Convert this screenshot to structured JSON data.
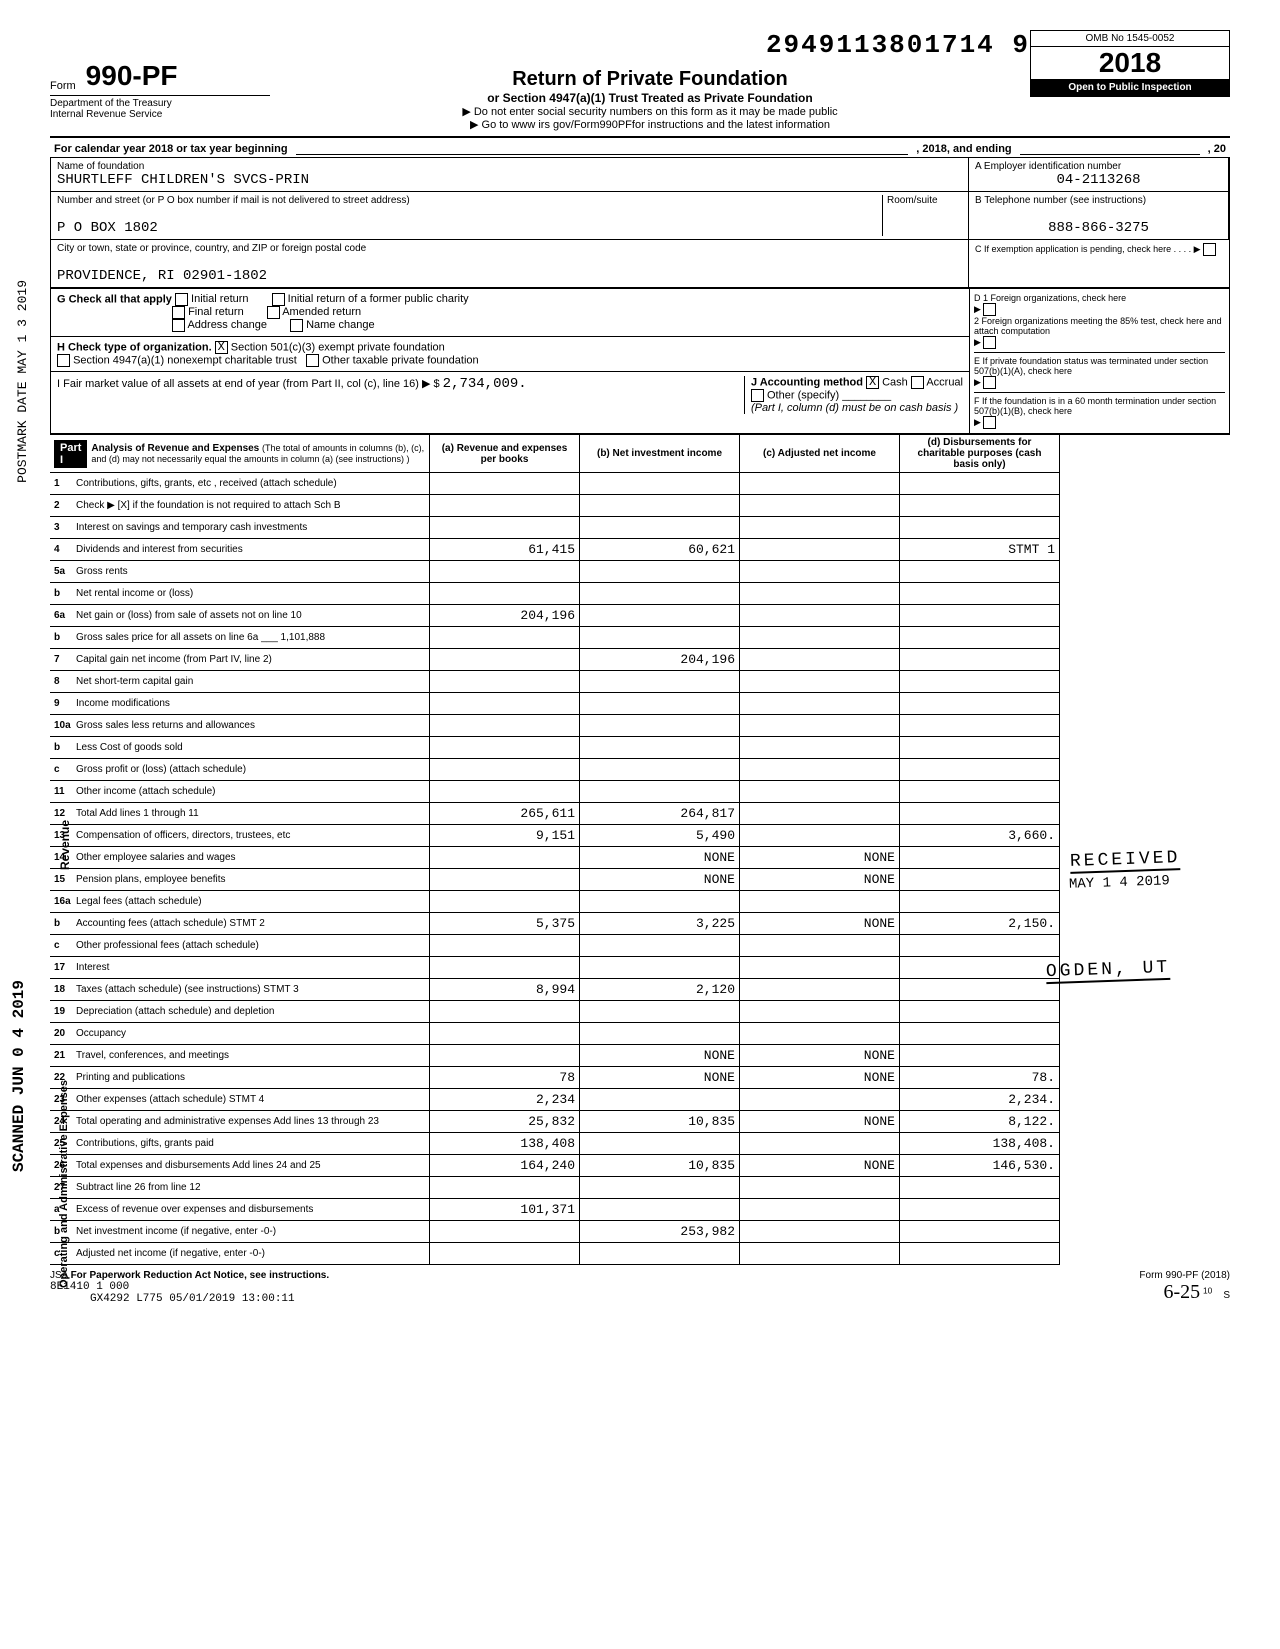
{
  "doc_id": "2949113801714 9",
  "form_prefix": "Form",
  "form_number": "990-PF",
  "dept1": "Department of the Treasury",
  "dept2": "Internal Revenue Service",
  "title": "Return of Private Foundation",
  "subtitle": "or Section 4947(a)(1) Trust Treated as Private Foundation",
  "warn": "▶ Do not enter social security numbers on this form as it may be made public",
  "goto": "▶ Go to www irs gov/Form990PFfor instructions and the latest information",
  "omb": "OMB No 1545-0052",
  "year_prefix": "20",
  "year_suffix": "18",
  "open_to": "Open to Public Inspection",
  "cal_year": "For calendar year 2018 or tax year beginning",
  "cal_mid": ", 2018, and ending",
  "cal_end": ", 20",
  "labels": {
    "name": "Name of foundation",
    "ein": "A  Employer identification number",
    "addr": "Number and street (or P O  box number if mail is not delivered to street address)",
    "room": "Room/suite",
    "tel": "B  Telephone number (see instructions)",
    "city": "City or town, state or province, country, and ZIP or foreign postal code",
    "c": "C  If exemption application is pending, check here",
    "g": "G  Check all that apply",
    "h": "H  Check type of organization.",
    "i": "I   Fair market value of all assets at end of year (from Part II, col  (c), line 16) ▶ $",
    "j": "J Accounting method",
    "part1": "Part I",
    "part1_title": "Analysis of Revenue and Expenses",
    "part1_note": "(The total of amounts in columns (b), (c), and (d) may not necessarily equal the amounts in column (a) (see instructions) )",
    "col_a": "(a) Revenue and expenses per books",
    "col_b": "(b) Net investment income",
    "col_c": "(c) Adjusted net income",
    "col_d": "(d) Disbursements for charitable purposes (cash basis only)"
  },
  "foundation_name": "SHURTLEFF CHILDREN'S SVCS-PRIN",
  "ein": "04-2113268",
  "po_box": "P O BOX 1802",
  "phone": "888-866-3275",
  "city_state": "PROVIDENCE, RI  02901-1802",
  "g_opts": [
    "Initial return",
    "Final return",
    "Address change",
    "Initial return of a former public charity",
    "Amended return",
    "Name change"
  ],
  "h_opts": [
    "Section 501(c)(3) exempt private foundation",
    "Section 4947(a)(1) nonexempt charitable trust",
    "Other taxable private foundation"
  ],
  "h_checked": "X",
  "j_opts": [
    "Cash",
    "Accrual",
    "Other (specify)"
  ],
  "j_checked": "X",
  "fmv": "2,734,009.",
  "part1_note2": "(Part I, column (d) must be on cash basis )",
  "d_opts": {
    "d1": "D  1  Foreign organizations, check here",
    "d2": "2  Foreign organizations meeting the 85% test, check here and attach computation",
    "e": "E  If private foundation status was terminated under section 507(b)(1)(A), check here",
    "f": "F  If the foundation is in a 60 month termination under section 507(b)(1)(B), check here"
  },
  "side_postmark": "POSTMARK DATE MAY 1 3 2019",
  "side_envelope": "ENVELOPE",
  "side_scanned": "SCANNED JUN 0 4 2019",
  "stamp_received": "RECEIVED",
  "stamp_date": "MAY 1 4 2019",
  "stamp_ogden": "OGDEN, UT",
  "vert_revenue": "Revenue",
  "vert_oae": "Operating and Administrative Expenses",
  "rows": [
    {
      "n": "1",
      "d": "Contributions, gifts, grants, etc , received (attach schedule)",
      "a": "",
      "b": "",
      "c": "",
      "dd": ""
    },
    {
      "n": "2",
      "d": "Check ▶ [X]  if the foundation is not required to attach Sch B",
      "a": "",
      "b": "",
      "c": "",
      "dd": ""
    },
    {
      "n": "3",
      "d": "Interest on savings and temporary cash investments",
      "a": "",
      "b": "",
      "c": "",
      "dd": ""
    },
    {
      "n": "4",
      "d": "Dividends and interest from securities",
      "a": "61,415",
      "b": "60,621",
      "c": "",
      "dd": "STMT 1"
    },
    {
      "n": "5a",
      "d": "Gross rents",
      "a": "",
      "b": "",
      "c": "",
      "dd": ""
    },
    {
      "n": "b",
      "d": "Net rental income or (loss)",
      "a": "",
      "b": "",
      "c": "",
      "dd": ""
    },
    {
      "n": "6a",
      "d": "Net gain or (loss) from sale of assets not on line 10",
      "a": "204,196",
      "b": "",
      "c": "",
      "dd": ""
    },
    {
      "n": "b",
      "d": "Gross sales price for all assets on line 6a ___ 1,101,888",
      "a": "",
      "b": "",
      "c": "",
      "dd": ""
    },
    {
      "n": "7",
      "d": "Capital gain net income (from Part IV, line 2)",
      "a": "",
      "b": "204,196",
      "c": "",
      "dd": ""
    },
    {
      "n": "8",
      "d": "Net short-term capital gain",
      "a": "",
      "b": "",
      "c": "",
      "dd": ""
    },
    {
      "n": "9",
      "d": "Income modifications",
      "a": "",
      "b": "",
      "c": "",
      "dd": ""
    },
    {
      "n": "10a",
      "d": "Gross sales less returns and allowances",
      "a": "",
      "b": "",
      "c": "",
      "dd": ""
    },
    {
      "n": "b",
      "d": "Less  Cost of goods sold",
      "a": "",
      "b": "",
      "c": "",
      "dd": ""
    },
    {
      "n": "c",
      "d": "Gross profit or (loss) (attach schedule)",
      "a": "",
      "b": "",
      "c": "",
      "dd": ""
    },
    {
      "n": "11",
      "d": "Other income (attach schedule)",
      "a": "",
      "b": "",
      "c": "",
      "dd": ""
    },
    {
      "n": "12",
      "d": "Total  Add lines 1 through 11",
      "a": "265,611",
      "b": "264,817",
      "c": "",
      "dd": ""
    },
    {
      "n": "13",
      "d": "Compensation of officers, directors, trustees, etc",
      "a": "9,151",
      "b": "5,490",
      "c": "",
      "dd": "3,660."
    },
    {
      "n": "14",
      "d": "Other employee salaries and wages",
      "a": "",
      "b": "NONE",
      "c": "NONE",
      "dd": ""
    },
    {
      "n": "15",
      "d": "Pension plans, employee benefits",
      "a": "",
      "b": "NONE",
      "c": "NONE",
      "dd": ""
    },
    {
      "n": "16a",
      "d": "Legal fees (attach schedule)",
      "a": "",
      "b": "",
      "c": "",
      "dd": ""
    },
    {
      "n": "b",
      "d": "Accounting fees (attach schedule) STMT 2",
      "a": "5,375",
      "b": "3,225",
      "c": "NONE",
      "dd": "2,150."
    },
    {
      "n": "c",
      "d": "Other professional fees (attach schedule)",
      "a": "",
      "b": "",
      "c": "",
      "dd": ""
    },
    {
      "n": "17",
      "d": "Interest",
      "a": "",
      "b": "",
      "c": "",
      "dd": ""
    },
    {
      "n": "18",
      "d": "Taxes (attach schedule) (see instructions) STMT 3",
      "a": "8,994",
      "b": "2,120",
      "c": "",
      "dd": ""
    },
    {
      "n": "19",
      "d": "Depreciation (attach schedule) and depletion",
      "a": "",
      "b": "",
      "c": "",
      "dd": ""
    },
    {
      "n": "20",
      "d": "Occupancy",
      "a": "",
      "b": "",
      "c": "",
      "dd": ""
    },
    {
      "n": "21",
      "d": "Travel, conferences, and meetings",
      "a": "",
      "b": "NONE",
      "c": "NONE",
      "dd": ""
    },
    {
      "n": "22",
      "d": "Printing and publications",
      "a": "78",
      "b": "NONE",
      "c": "NONE",
      "dd": "78."
    },
    {
      "n": "23",
      "d": "Other expenses (attach schedule)  STMT 4",
      "a": "2,234",
      "b": "",
      "c": "",
      "dd": "2,234."
    },
    {
      "n": "24",
      "d": "Total operating and administrative expenses  Add lines 13 through 23",
      "a": "25,832",
      "b": "10,835",
      "c": "NONE",
      "dd": "8,122."
    },
    {
      "n": "25",
      "d": "Contributions, gifts, grants paid",
      "a": "138,408",
      "b": "",
      "c": "",
      "dd": "138,408."
    },
    {
      "n": "26",
      "d": "Total expenses and disbursements  Add lines 24 and 25",
      "a": "164,240",
      "b": "10,835",
      "c": "NONE",
      "dd": "146,530."
    },
    {
      "n": "27",
      "d": "Subtract line 26 from line 12",
      "a": "",
      "b": "",
      "c": "",
      "dd": ""
    },
    {
      "n": "a",
      "d": "Excess of revenue over expenses and disbursements",
      "a": "101,371",
      "b": "",
      "c": "",
      "dd": ""
    },
    {
      "n": "b",
      "d": "Net investment income (if negative, enter -0-)",
      "a": "",
      "b": "253,982",
      "c": "",
      "dd": ""
    },
    {
      "n": "c",
      "d": "Adjusted net income (if negative, enter -0-)",
      "a": "",
      "b": "",
      "c": "",
      "dd": ""
    }
  ],
  "footer": {
    "jsa": "JSA",
    "paperwork": "For Paperwork Reduction Act Notice, see instructions.",
    "code": "8E1410 1 000",
    "file": "GX4292 L775 05/01/2019 13:00:11",
    "formref": "Form 990-PF (2018)",
    "sig": "6-25",
    "pg": "10",
    "s": "S"
  }
}
